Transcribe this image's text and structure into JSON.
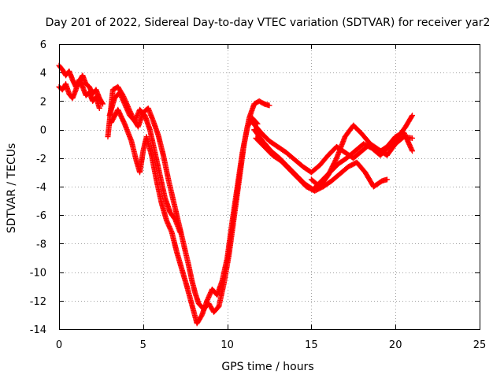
{
  "chart_data": {
    "type": "scatter",
    "title": "Day 201 of 2022, Sidereal Day-to-day VTEC variation (SDTVAR) for receiver yar2",
    "xlabel": "GPS time / hours",
    "ylabel": "SDTVAR / TECUs",
    "xlim": [
      0,
      25
    ],
    "ylim": [
      -14,
      6
    ],
    "xticks": [
      0,
      5,
      10,
      15,
      20,
      25
    ],
    "yticks": [
      -14,
      -12,
      -10,
      -8,
      -6,
      -4,
      -2,
      0,
      2,
      4,
      6
    ],
    "xtick_labels": [
      "0",
      "5",
      "10",
      "15",
      "20",
      "25"
    ],
    "ytick_labels": [
      "-14",
      "-12",
      "-10",
      "-8",
      "-6",
      "-4",
      "-2",
      "0",
      "2",
      "4",
      "6"
    ],
    "grid": true,
    "marker": "+",
    "color": "#ff0000",
    "series": [
      {
        "name": "track-1",
        "x": [
          0.0,
          0.2,
          0.4,
          0.6,
          0.8,
          1.0,
          1.2,
          1.4,
          1.6,
          1.8,
          2.0,
          2.2,
          2.4,
          2.6
        ],
        "y": [
          4.5,
          4.2,
          3.8,
          4.1,
          3.5,
          3.0,
          3.4,
          3.8,
          3.2,
          3.0,
          2.5,
          2.8,
          2.2,
          1.8
        ]
      },
      {
        "name": "track-2",
        "x": [
          0.0,
          0.2,
          0.4,
          0.6,
          0.8,
          1.0,
          1.2,
          1.4,
          1.6,
          1.8,
          2.0,
          2.2,
          2.4
        ],
        "y": [
          3.0,
          2.8,
          3.2,
          2.5,
          2.2,
          2.8,
          3.5,
          3.0,
          2.4,
          2.6,
          2.0,
          2.3,
          1.5
        ]
      },
      {
        "name": "track-3",
        "x": [
          2.9,
          3.2,
          3.5,
          3.8,
          4.1,
          4.4,
          4.7,
          5.0,
          5.3,
          5.6,
          5.9,
          6.2,
          6.5,
          6.8,
          7.1,
          7.4,
          7.7,
          7.9,
          8.1,
          8.3,
          8.6,
          8.9,
          9.2,
          9.5,
          9.8,
          10.1,
          10.4,
          10.7,
          11.0,
          11.3,
          11.6,
          11.9,
          12.2,
          12.5
        ],
        "y": [
          -0.5,
          2.8,
          3.0,
          2.4,
          1.6,
          0.8,
          0.2,
          1.2,
          1.5,
          0.6,
          -0.4,
          -1.8,
          -3.5,
          -5.0,
          -6.5,
          -8.0,
          -9.5,
          -10.6,
          -11.5,
          -12.2,
          -12.6,
          -12.2,
          -12.8,
          -12.4,
          -10.8,
          -8.8,
          -6.2,
          -3.6,
          -1.0,
          0.8,
          1.8,
          2.0,
          1.8,
          1.7
        ]
      },
      {
        "name": "track-4",
        "x": [
          3.0,
          3.3,
          3.6,
          3.9,
          4.2,
          4.5,
          4.8,
          5.1,
          5.4,
          5.7,
          6.0,
          6.3,
          6.6,
          6.9,
          7.2
        ],
        "y": [
          1.0,
          2.2,
          2.6,
          1.8,
          1.0,
          0.6,
          1.4,
          1.0,
          0.0,
          -1.6,
          -3.2,
          -4.8,
          -5.8,
          -6.3,
          -7.2
        ]
      },
      {
        "name": "track-5",
        "x": [
          3.1,
          3.5,
          3.9,
          4.3,
          4.6,
          4.8,
          5.0,
          5.2,
          5.5,
          5.8,
          6.1,
          6.4,
          6.7,
          7.0,
          7.3,
          7.6,
          7.9,
          8.2,
          8.5,
          8.8,
          9.1,
          9.4,
          9.7,
          10.0,
          10.3,
          10.6,
          10.9,
          11.2,
          11.5,
          11.8
        ],
        "y": [
          0.5,
          1.4,
          0.4,
          -0.8,
          -2.2,
          -3.0,
          -1.5,
          -0.5,
          -1.8,
          -3.6,
          -5.2,
          -6.4,
          -7.2,
          -8.6,
          -9.8,
          -11.0,
          -12.3,
          -13.6,
          -13.0,
          -12.0,
          -11.2,
          -11.6,
          -10.6,
          -9.0,
          -6.4,
          -4.0,
          -1.6,
          0.2,
          0.8,
          0.4
        ]
      },
      {
        "name": "track-6",
        "x": [
          11.5,
          12.0,
          12.5,
          13.0,
          13.5,
          14.0,
          14.5,
          15.0,
          15.5,
          16.0,
          16.5,
          17.0,
          17.5,
          18.0,
          18.5,
          19.0,
          19.5,
          20.0,
          20.5,
          21.0
        ],
        "y": [
          0.5,
          -0.2,
          -0.8,
          -1.2,
          -1.6,
          -2.1,
          -2.6,
          -3.0,
          -2.5,
          -1.8,
          -1.2,
          -1.6,
          -2.0,
          -1.5,
          -1.0,
          -1.4,
          -1.8,
          -1.0,
          -0.5,
          -0.6
        ]
      },
      {
        "name": "track-7",
        "x": [
          11.6,
          12.1,
          12.6,
          13.1,
          13.6,
          14.1,
          14.6,
          15.1,
          15.6,
          16.1,
          16.6,
          17.1,
          17.6,
          18.1,
          18.6,
          19.1,
          19.6,
          20.1,
          20.6,
          21.0
        ],
        "y": [
          0.0,
          -0.8,
          -1.5,
          -2.0,
          -2.6,
          -3.2,
          -3.8,
          -4.2,
          -3.6,
          -3.0,
          -2.4,
          -2.0,
          -1.5,
          -1.0,
          -1.3,
          -1.8,
          -1.2,
          -0.6,
          0.2,
          1.0
        ]
      },
      {
        "name": "track-8",
        "x": [
          11.7,
          12.2,
          12.7,
          13.2,
          13.7,
          14.2,
          14.7,
          15.2,
          15.7,
          16.2,
          16.7,
          17.2,
          17.7,
          18.2,
          18.7,
          19.2,
          19.5
        ],
        "y": [
          -0.6,
          -1.2,
          -1.8,
          -2.2,
          -2.8,
          -3.4,
          -4.0,
          -4.3,
          -4.0,
          -3.6,
          -3.1,
          -2.6,
          -2.3,
          -3.0,
          -4.0,
          -3.6,
          -3.5
        ]
      },
      {
        "name": "track-9",
        "x": [
          15.0,
          15.5,
          16.0,
          16.5,
          17.0,
          17.5,
          18.0,
          18.5,
          19.0,
          19.5,
          20.0,
          20.5,
          21.0
        ],
        "y": [
          -3.5,
          -4.0,
          -3.2,
          -2.0,
          -0.5,
          0.3,
          -0.3,
          -1.0,
          -1.6,
          -1.2,
          -0.5,
          -0.2,
          -1.5
        ]
      }
    ]
  }
}
